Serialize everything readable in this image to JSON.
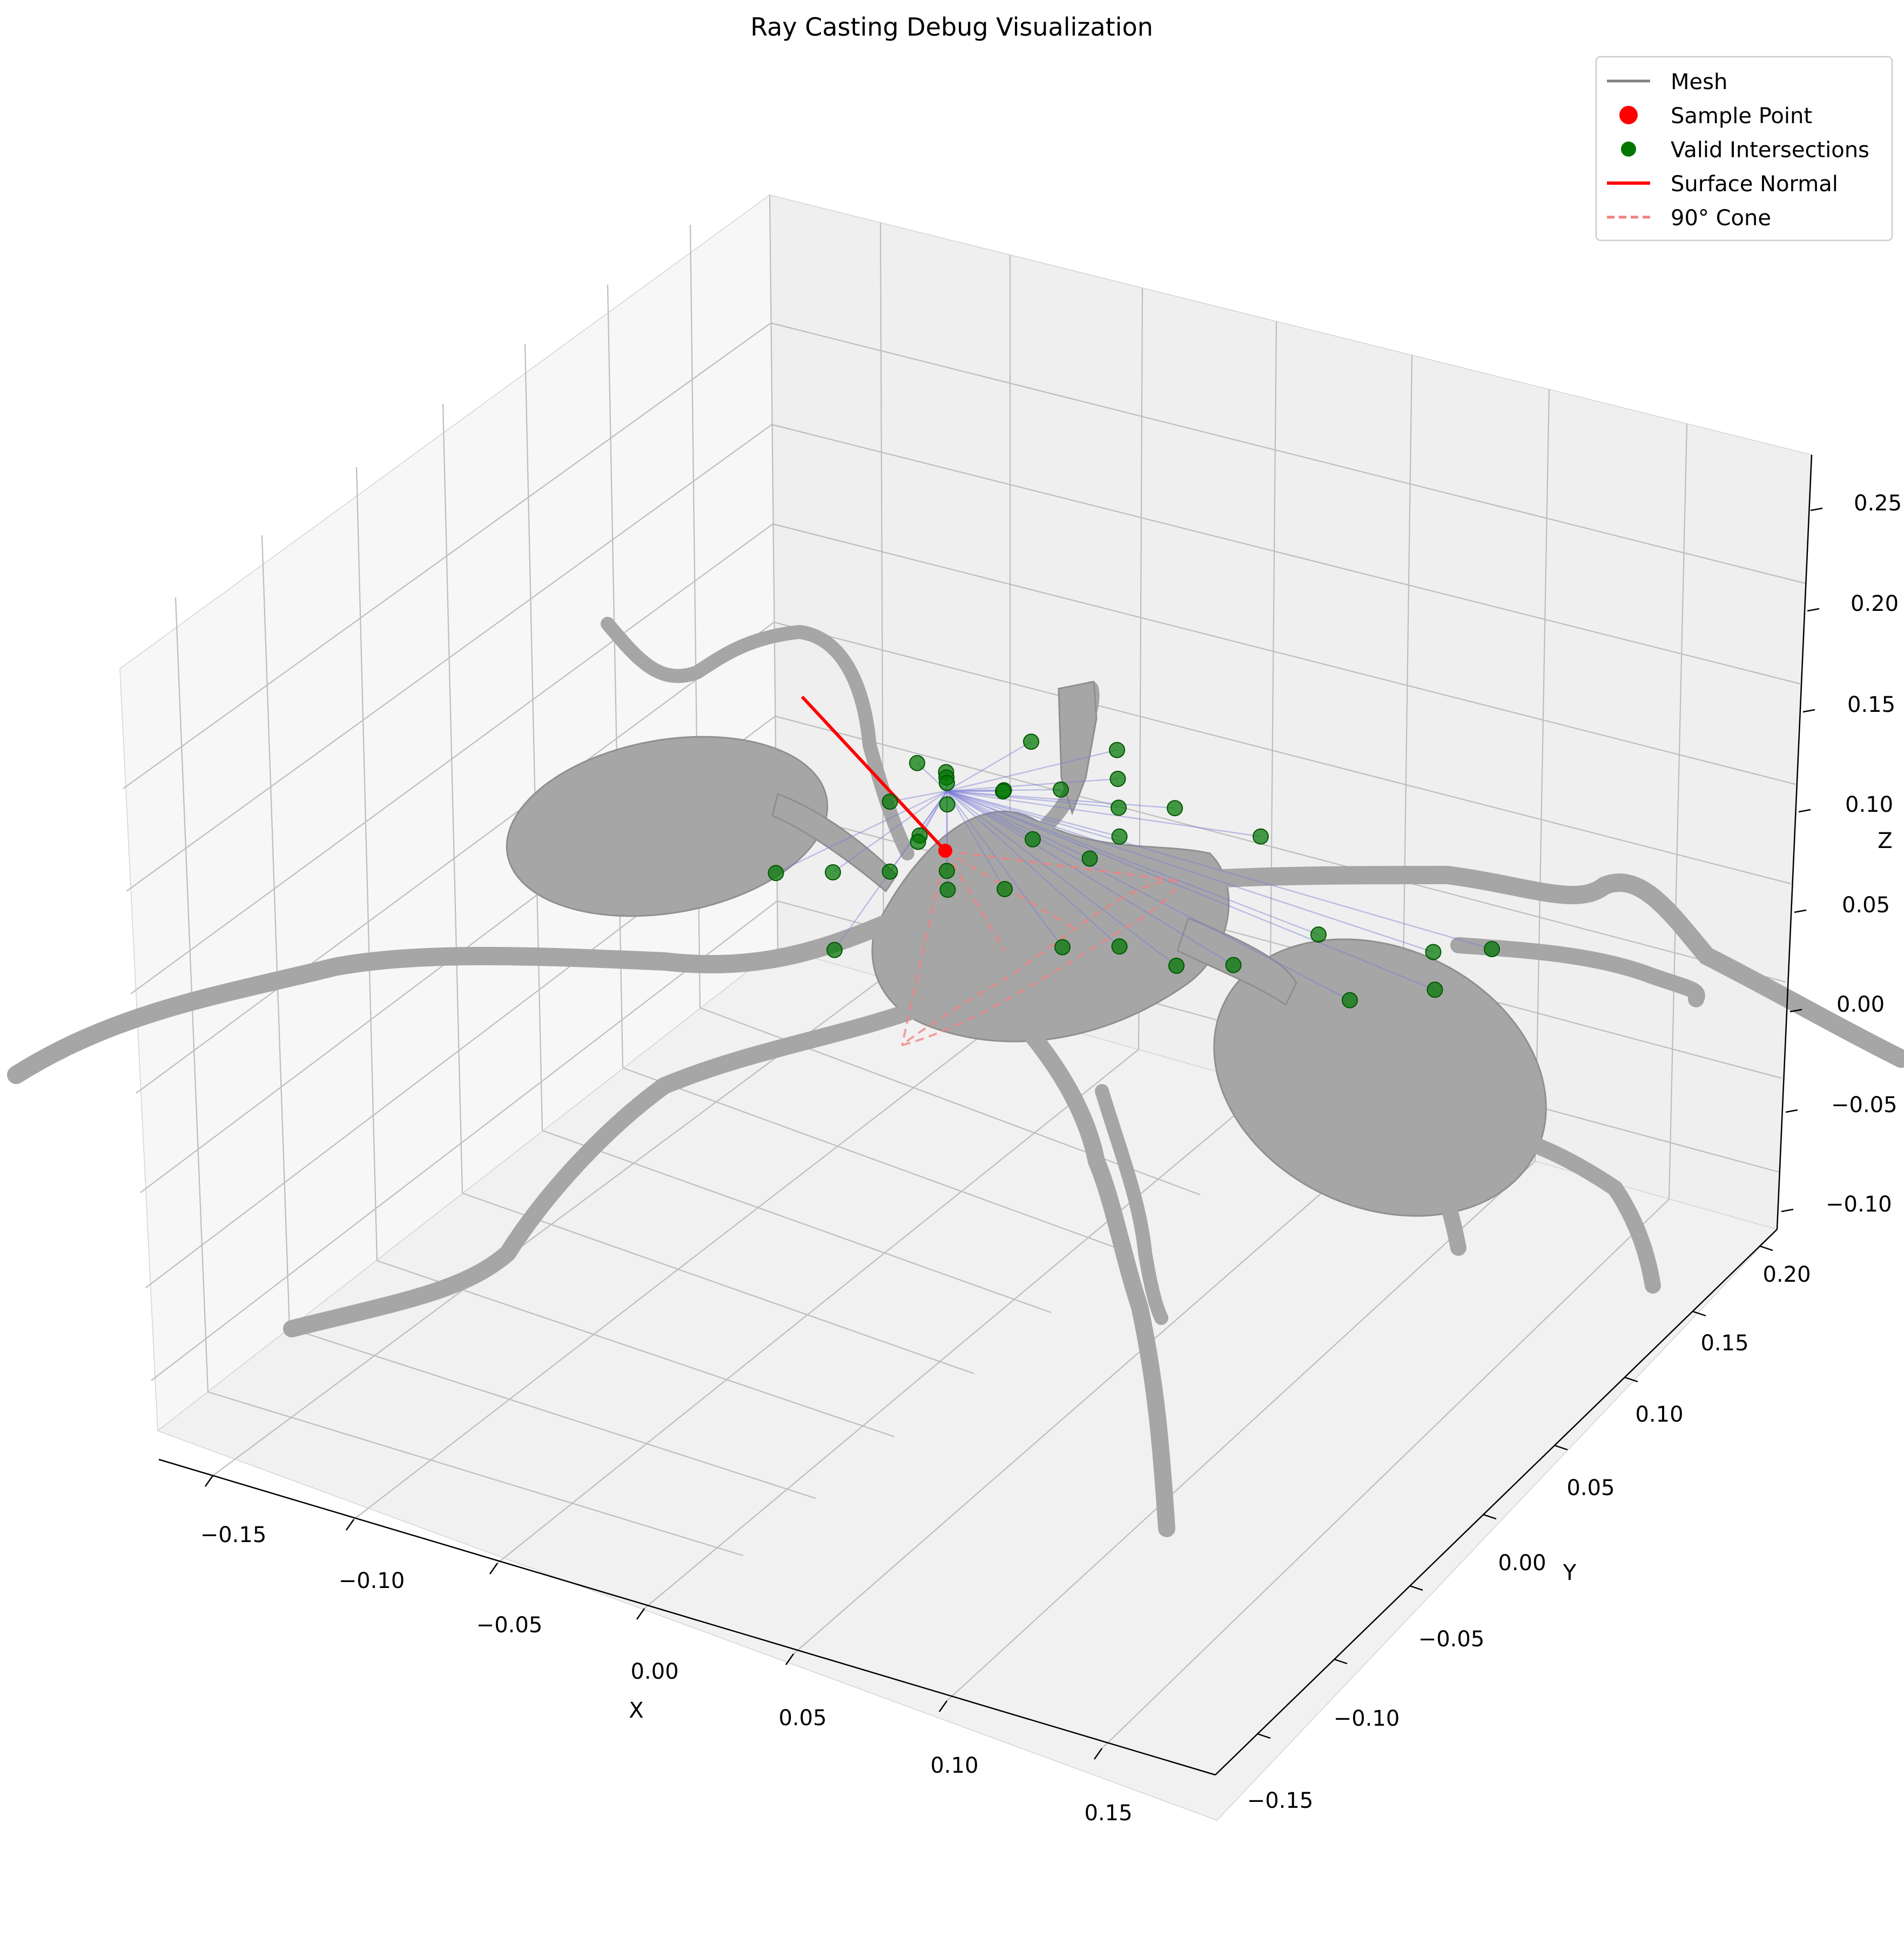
{
  "chart_data": {
    "type": "scatter",
    "projection": "3d",
    "title": "Ray Casting Debug Visualization",
    "xlabel": "X",
    "ylabel": "Y",
    "zlabel": "Z",
    "x_ticks": [
      "−0.15",
      "−0.10",
      "−0.05",
      "0.00",
      "0.05",
      "0.10",
      "0.15"
    ],
    "y_ticks": [
      "−0.15",
      "−0.10",
      "−0.05",
      "0.00",
      "0.05",
      "0.10",
      "0.15",
      "0.20"
    ],
    "z_ticks": [
      "−0.10",
      "−0.05",
      "0.00",
      "0.05",
      "0.10",
      "0.15",
      "0.20",
      "0.25"
    ],
    "xlim": [
      -0.18,
      0.18
    ],
    "ylim": [
      -0.17,
      0.21
    ],
    "zlim": [
      -0.11,
      0.26
    ],
    "grid": true,
    "legend_position": "top-right",
    "legend": [
      {
        "label": "Mesh",
        "kind": "line",
        "color": "#808080"
      },
      {
        "label": "Sample Point",
        "kind": "marker",
        "color": "#ff0000"
      },
      {
        "label": "Valid Intersections",
        "kind": "marker",
        "color": "#007700"
      },
      {
        "label": "Surface Normal",
        "kind": "line",
        "color": "#ff0000"
      },
      {
        "label": "90° Cone",
        "kind": "dashed",
        "color": "#f08080"
      }
    ],
    "mesh_color": "#a6a6a6",
    "ray_color": "#7a7ad8",
    "sample_point": [
      -0.02,
      0.0,
      0.06
    ],
    "surface_normal": {
      "start": [
        -0.02,
        0.0,
        0.06
      ],
      "end": [
        -0.09,
        0.0,
        0.16
      ]
    },
    "intersections": [
      [
        -0.03,
        0.01,
        0.06
      ],
      [
        -0.025,
        0.005,
        0.062
      ],
      [
        -0.02,
        0.0,
        0.064
      ],
      [
        -0.015,
        -0.005,
        0.058
      ],
      [
        -0.01,
        0.01,
        0.06
      ],
      [
        -0.03,
        -0.01,
        0.055
      ],
      [
        -0.02,
        0.02,
        0.05
      ],
      [
        -0.01,
        -0.02,
        0.052
      ],
      [
        0.0,
        0.02,
        0.06
      ],
      [
        0.01,
        0.03,
        0.065
      ],
      [
        0.02,
        0.02,
        0.06
      ],
      [
        0.03,
        0.01,
        0.055
      ],
      [
        -0.05,
        -0.03,
        0.02
      ],
      [
        -0.04,
        -0.02,
        0.02
      ],
      [
        -0.03,
        -0.01,
        0.02
      ],
      [
        -0.02,
        0.0,
        0.02
      ],
      [
        -0.01,
        -0.01,
        0.02
      ],
      [
        0.0,
        0.0,
        0.02
      ],
      [
        0.02,
        0.0,
        0.0
      ],
      [
        0.03,
        0.01,
        0.0
      ],
      [
        0.04,
        0.02,
        -0.01
      ],
      [
        0.05,
        0.03,
        -0.01
      ],
      [
        0.06,
        0.05,
        0.0
      ],
      [
        0.09,
        0.06,
        0.0
      ],
      [
        0.11,
        0.04,
        0.0
      ],
      [
        0.12,
        0.05,
        0.02
      ],
      [
        0.1,
        0.02,
        0.0
      ],
      [
        -0.02,
        -0.04,
        0.0
      ],
      [
        0.0,
        0.01,
        0.04
      ],
      [
        0.01,
        0.02,
        0.03
      ],
      [
        -0.03,
        0.0,
        0.03
      ],
      [
        0.02,
        0.04,
        0.05
      ],
      [
        0.04,
        0.05,
        0.04
      ],
      [
        -0.04,
        0.01,
        0.06
      ],
      [
        -0.02,
        0.03,
        0.07
      ],
      [
        0.0,
        0.04,
        0.07
      ]
    ]
  }
}
